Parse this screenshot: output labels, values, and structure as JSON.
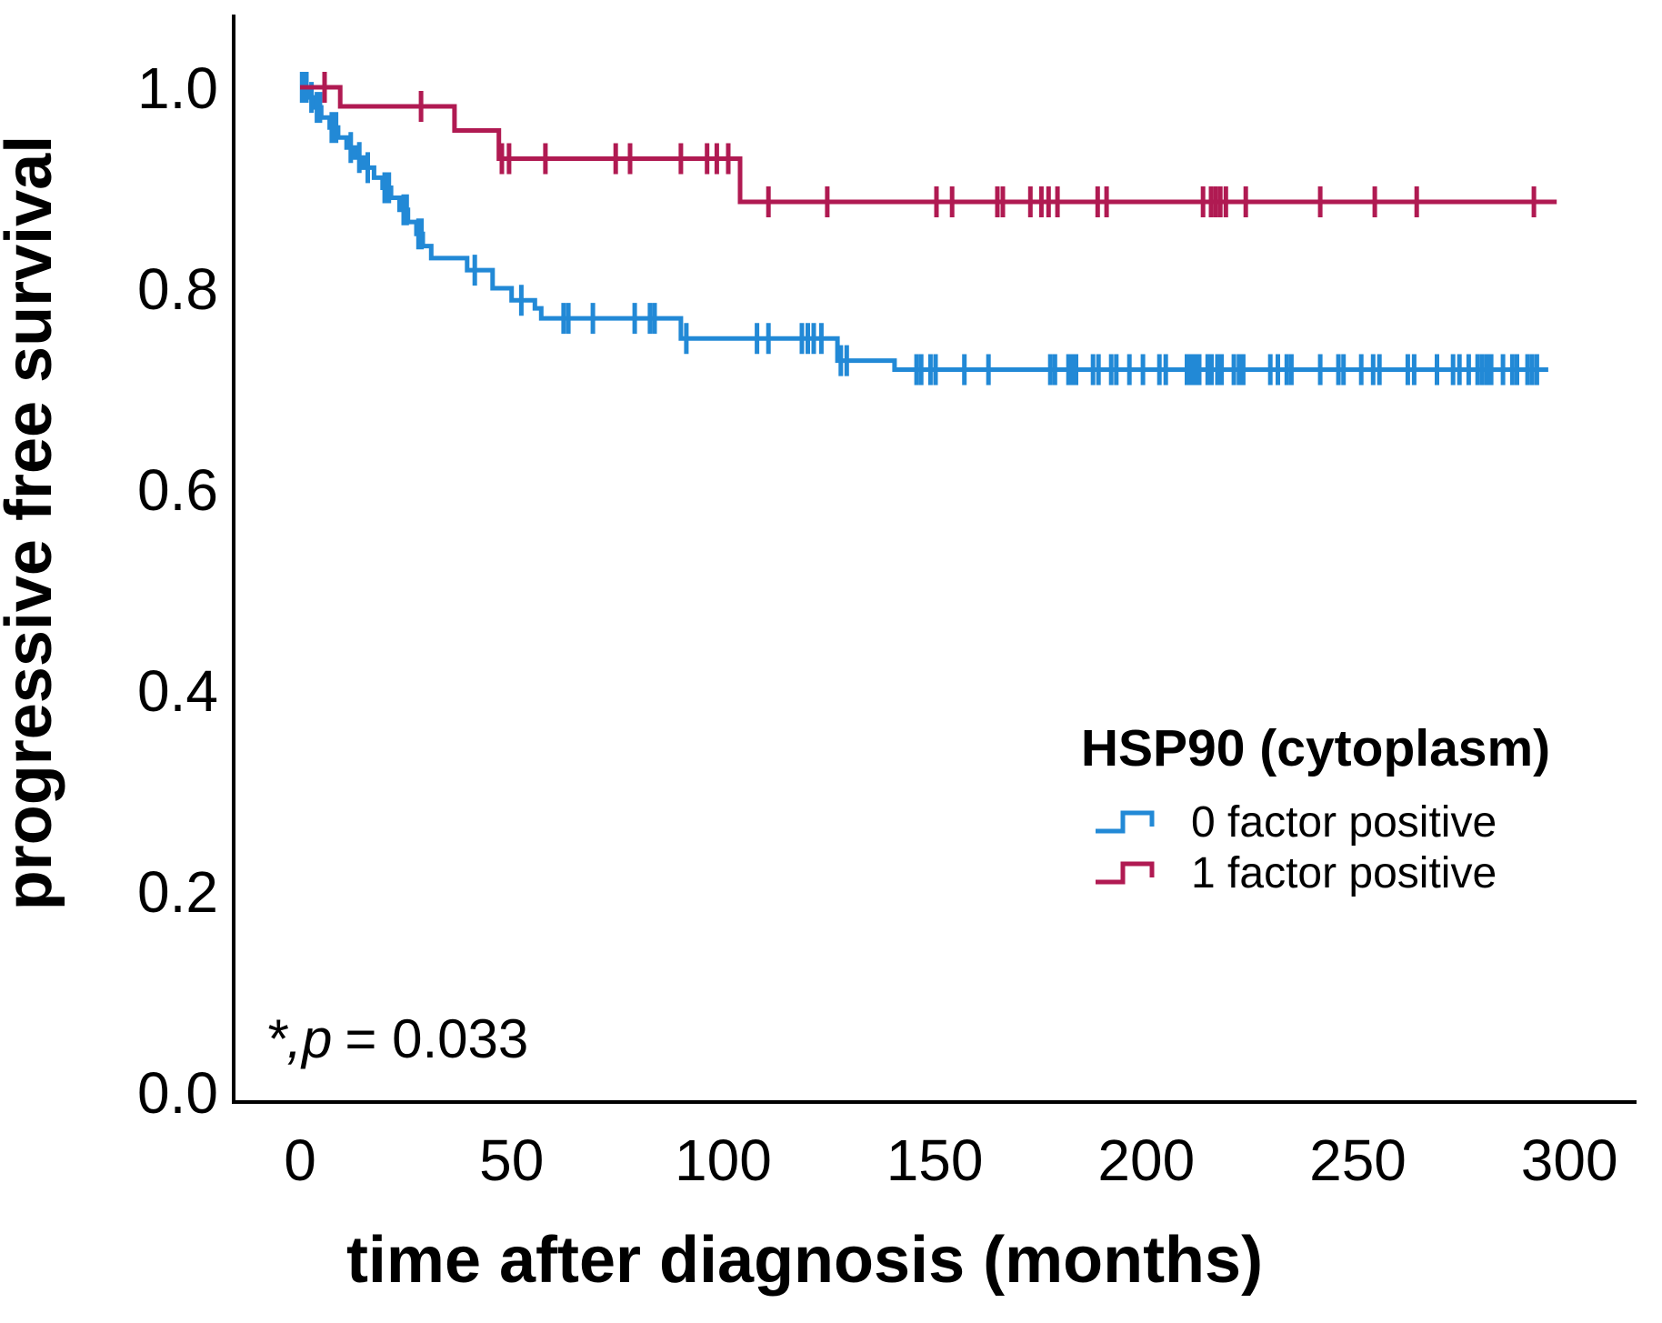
{
  "figure": {
    "ylabel": "progressive free survival",
    "xlabel": "time after diagnosis (months)",
    "annotation": {
      "italic": "*,p",
      "rest": "= 0.033"
    },
    "legend": {
      "title": "HSP90 (cytoplasm)",
      "items": [
        {
          "label": "0 factor positive",
          "color": "#2289d6"
        },
        {
          "label": "1 factor positive",
          "color": "#b01a52"
        }
      ]
    }
  },
  "chart_data": {
    "type": "line",
    "subtype": "kaplan-meier-step",
    "title": "",
    "xlabel": "time after diagnosis (months)",
    "ylabel": "progressive free survival",
    "xlim": [
      0,
      300
    ],
    "ylim": [
      0.0,
      1.0
    ],
    "xticks": [
      0,
      50,
      100,
      150,
      200,
      250,
      300
    ],
    "yticks": [
      0.0,
      0.2,
      0.4,
      0.6,
      0.8,
      1.0
    ],
    "grid": false,
    "legend_position": "right-center",
    "p_value": "0.033",
    "series": [
      {
        "name": "0 factor positive",
        "color": "#2289d6",
        "end_t": 295,
        "step_points": [
          [
            0,
            1.0
          ],
          [
            2,
            0.99
          ],
          [
            3.5,
            0.98
          ],
          [
            5,
            0.97
          ],
          [
            7,
            0.96
          ],
          [
            9,
            0.95
          ],
          [
            11,
            0.94
          ],
          [
            13,
            0.93
          ],
          [
            15,
            0.92
          ],
          [
            17.5,
            0.91
          ],
          [
            19.5,
            0.9
          ],
          [
            21.5,
            0.89
          ],
          [
            23.5,
            0.878
          ],
          [
            25.5,
            0.866
          ],
          [
            27.5,
            0.854
          ],
          [
            29,
            0.842
          ],
          [
            31,
            0.83
          ],
          [
            39.5,
            0.818
          ],
          [
            45.5,
            0.8
          ],
          [
            50,
            0.788
          ],
          [
            55.5,
            0.78
          ],
          [
            57,
            0.77
          ],
          [
            90,
            0.75
          ],
          [
            127,
            0.728
          ],
          [
            140.5,
            0.719
          ]
        ],
        "censors": [
          [
            0.5,
            1.0
          ],
          [
            1.5,
            1.0
          ],
          [
            2.7,
            0.99
          ],
          [
            4,
            0.98
          ],
          [
            4.7,
            0.98
          ],
          [
            7.5,
            0.96
          ],
          [
            8.5,
            0.96
          ],
          [
            12,
            0.94
          ],
          [
            14,
            0.93
          ],
          [
            16,
            0.92
          ],
          [
            20,
            0.9
          ],
          [
            21,
            0.9
          ],
          [
            24.5,
            0.878
          ],
          [
            25.2,
            0.878
          ],
          [
            28,
            0.854
          ],
          [
            28.7,
            0.854
          ],
          [
            41.3,
            0.818
          ],
          [
            52.3,
            0.788
          ],
          [
            62.3,
            0.77
          ],
          [
            63.4,
            0.77
          ],
          [
            69.2,
            0.77
          ],
          [
            79.1,
            0.77
          ],
          [
            82.7,
            0.77
          ],
          [
            83.8,
            0.77
          ],
          [
            91.3,
            0.75
          ],
          [
            108,
            0.75
          ],
          [
            110.7,
            0.75
          ],
          [
            118.6,
            0.75
          ],
          [
            120,
            0.75
          ],
          [
            121.4,
            0.75
          ],
          [
            123.2,
            0.75
          ],
          [
            127.8,
            0.728
          ],
          [
            129.2,
            0.728
          ],
          [
            145.7,
            0.719
          ],
          [
            146.8,
            0.719
          ],
          [
            149,
            0.719
          ],
          [
            150.2,
            0.719
          ],
          [
            157,
            0.719
          ],
          [
            162.7,
            0.719
          ],
          [
            177.3,
            0.719
          ],
          [
            178.4,
            0.719
          ],
          [
            181.6,
            0.719
          ],
          [
            182.6,
            0.719
          ],
          [
            183.4,
            0.719
          ],
          [
            187.4,
            0.719
          ],
          [
            188.7,
            0.719
          ],
          [
            191.7,
            0.719
          ],
          [
            192.9,
            0.719
          ],
          [
            196,
            0.719
          ],
          [
            199.2,
            0.719
          ],
          [
            203.1,
            0.719
          ],
          [
            204.6,
            0.719
          ],
          [
            209.6,
            0.719
          ],
          [
            210.6,
            0.719
          ],
          [
            211.5,
            0.719
          ],
          [
            212.5,
            0.719
          ],
          [
            214.5,
            0.719
          ],
          [
            215.4,
            0.719
          ],
          [
            216.8,
            0.719
          ],
          [
            217.8,
            0.719
          ],
          [
            220.7,
            0.719
          ],
          [
            221.9,
            0.719
          ],
          [
            222.9,
            0.719
          ],
          [
            229.3,
            0.719
          ],
          [
            231.1,
            0.719
          ],
          [
            233.2,
            0.719
          ],
          [
            234.3,
            0.719
          ],
          [
            241.1,
            0.719
          ],
          [
            245.4,
            0.719
          ],
          [
            246.6,
            0.719
          ],
          [
            250.8,
            0.719
          ],
          [
            253.6,
            0.719
          ],
          [
            255.1,
            0.719
          ],
          [
            261.8,
            0.719
          ],
          [
            263.3,
            0.719
          ],
          [
            268.7,
            0.719
          ],
          [
            272.5,
            0.719
          ],
          [
            274,
            0.719
          ],
          [
            276.2,
            0.719
          ],
          [
            278.3,
            0.719
          ],
          [
            279.4,
            0.719
          ],
          [
            280.5,
            0.719
          ],
          [
            281.5,
            0.719
          ],
          [
            284.3,
            0.719
          ],
          [
            286.5,
            0.719
          ],
          [
            287.6,
            0.719
          ],
          [
            290.1,
            0.719
          ],
          [
            291.2,
            0.719
          ],
          [
            292.3,
            0.719
          ]
        ]
      },
      {
        "name": "1 factor positive",
        "color": "#b01a52",
        "end_t": 297,
        "step_points": [
          [
            0,
            1.0
          ],
          [
            9.5,
            0.981
          ],
          [
            36.5,
            0.957
          ],
          [
            47,
            0.929
          ],
          [
            104,
            0.886
          ]
        ],
        "censors": [
          [
            5.8,
            1.0
          ],
          [
            28.6,
            0.981
          ],
          [
            47.7,
            0.929
          ],
          [
            49.4,
            0.929
          ],
          [
            58,
            0.929
          ],
          [
            74.6,
            0.929
          ],
          [
            78,
            0.929
          ],
          [
            90,
            0.929
          ],
          [
            96.2,
            0.929
          ],
          [
            98.5,
            0.929
          ],
          [
            101.2,
            0.929
          ],
          [
            110.7,
            0.886
          ],
          [
            124.6,
            0.886
          ],
          [
            150.4,
            0.886
          ],
          [
            154.1,
            0.886
          ],
          [
            164.8,
            0.886
          ],
          [
            166.1,
            0.886
          ],
          [
            172.6,
            0.886
          ],
          [
            175.2,
            0.886
          ],
          [
            176.9,
            0.886
          ],
          [
            179,
            0.886
          ],
          [
            188.5,
            0.886
          ],
          [
            190.6,
            0.886
          ],
          [
            213.4,
            0.886
          ],
          [
            215.3,
            0.886
          ],
          [
            216.4,
            0.886
          ],
          [
            217.5,
            0.886
          ],
          [
            218.8,
            0.886
          ],
          [
            223.5,
            0.886
          ],
          [
            241.1,
            0.886
          ],
          [
            254,
            0.886
          ],
          [
            263.9,
            0.886
          ],
          [
            291.6,
            0.886
          ]
        ]
      }
    ]
  }
}
